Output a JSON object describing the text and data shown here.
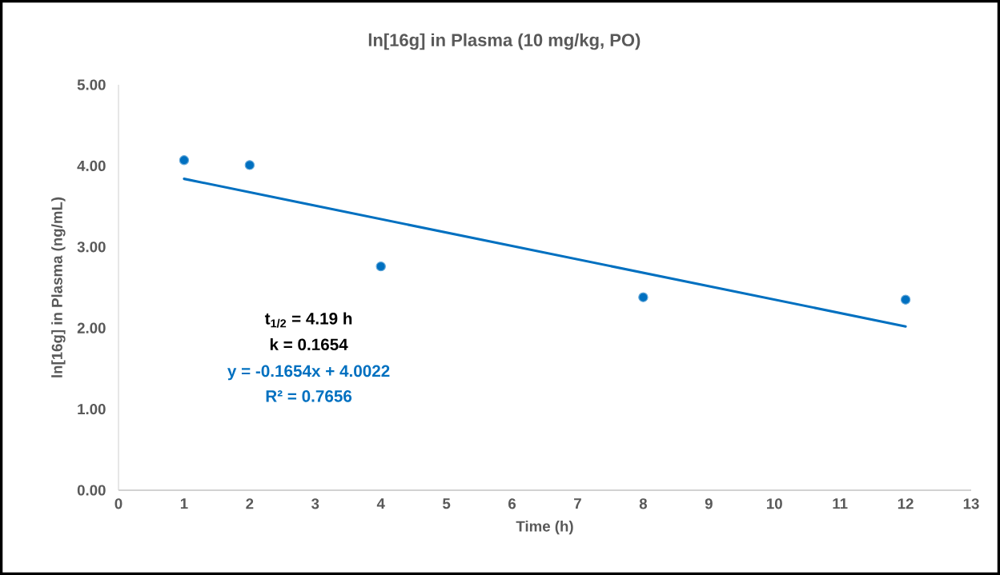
{
  "chart_data": {
    "type": "scatter",
    "title": "ln[16g] in Plasma (10 mg/kg, PO)",
    "xlabel": "Time (h)",
    "ylabel": "ln[16g] in Plasma (ng/mL)",
    "xlim": [
      0,
      13
    ],
    "xticks": [
      0,
      1,
      2,
      3,
      4,
      5,
      6,
      7,
      8,
      9,
      10,
      11,
      12,
      13
    ],
    "ylim": [
      0,
      5
    ],
    "yticks": [
      {
        "value": 0,
        "label": "0.00"
      },
      {
        "value": 1,
        "label": "1.00"
      },
      {
        "value": 2,
        "label": "2.00"
      },
      {
        "value": 3,
        "label": "3.00"
      },
      {
        "value": 4,
        "label": "4.00"
      },
      {
        "value": 5,
        "label": "5.00"
      }
    ],
    "series": [
      {
        "color": "#0070c0",
        "marker": "circle",
        "x": [
          1,
          2,
          4,
          8,
          12
        ],
        "values": [
          4.07,
          4.01,
          2.76,
          2.38,
          2.35
        ]
      },
      {
        "type": "line",
        "color": "#0070c0",
        "marker": "none",
        "x": [
          1,
          12
        ],
        "values": [
          3.84,
          2.02
        ]
      }
    ],
    "annotations": [
      "t$_{1/2}$ = 4.19 h",
      "k = 0.1654",
      "y = -0.1654x + 4.0022",
      "R² = 0.7656"
    ]
  }
}
